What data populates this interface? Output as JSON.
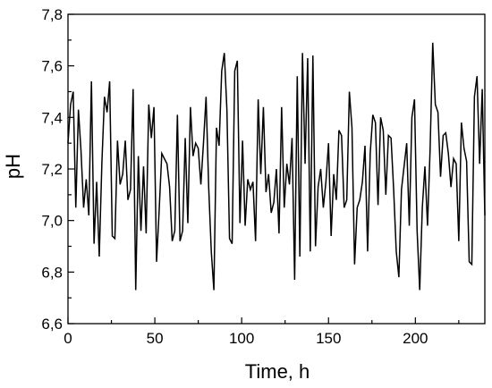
{
  "chart_data": {
    "type": "line",
    "title": "",
    "xlabel": "Time, h",
    "ylabel": "pH",
    "xlim": [
      0,
      240
    ],
    "ylim": [
      6.6,
      7.8
    ],
    "x_ticks": [
      0,
      50,
      100,
      150,
      200
    ],
    "x_tick_labels": [
      "0",
      "50",
      "100",
      "150",
      "200"
    ],
    "y_ticks": [
      6.6,
      6.8,
      7.0,
      7.2,
      7.4,
      7.6,
      7.8
    ],
    "y_tick_labels": [
      "6,6",
      "6,8",
      "7,0",
      "7,2",
      "7,4",
      "7,6",
      "7,8"
    ],
    "grid": false,
    "line_color": "#000000",
    "series": [
      {
        "x": [
          0,
          1.5,
          3,
          4.5,
          6,
          7.5,
          9,
          10.5,
          12,
          13.5,
          15,
          16.5,
          18,
          19.5,
          21,
          22.5,
          24,
          25.5,
          27,
          28.5,
          30,
          31.5,
          33,
          34.5,
          36,
          37.5,
          39,
          40.5,
          42,
          43.5,
          45,
          46.5,
          48,
          49.5,
          51,
          52.5,
          54,
          55.5,
          57,
          58.5,
          60,
          61.5,
          63,
          64.5,
          66,
          67.5,
          69,
          70.5,
          72,
          73.5,
          75,
          76.5,
          78,
          79.5,
          81,
          82.5,
          84,
          85.5,
          87,
          88.5,
          90,
          91.5,
          93,
          94.5,
          96,
          97.5,
          99,
          100.5,
          102,
          103.5,
          105,
          106.5,
          108,
          109.5,
          111,
          112.5,
          114,
          115.5,
          117,
          118.5,
          120,
          121.5,
          123,
          124.5,
          126,
          127.5,
          129,
          130.5,
          132,
          133.5,
          135,
          136.5,
          138,
          139.5,
          141,
          142.5,
          144,
          145.5,
          147,
          148.5,
          150,
          151.5,
          153,
          154.5,
          156,
          157.5,
          159,
          160.5,
          162,
          163.5,
          165,
          166.5,
          168,
          169.5,
          171,
          172.5,
          174,
          175.5,
          177,
          178.5,
          180,
          181.5,
          183,
          184.5,
          186,
          187.5,
          189,
          190.5,
          192,
          193.5,
          195,
          196.5,
          198,
          199.5,
          201,
          202.5,
          204,
          205.5,
          207,
          208.5,
          210,
          211.5,
          213,
          214.5,
          216,
          217.5,
          219,
          220.5,
          222,
          223.5,
          225,
          226.5,
          228,
          229.5,
          231,
          232.5,
          234,
          235.5,
          237,
          238.5,
          240
        ],
        "y": [
          7.3,
          7.45,
          7.5,
          7.05,
          7.43,
          7.27,
          7.05,
          7.16,
          7.02,
          7.54,
          6.91,
          7.15,
          6.86,
          7.22,
          7.48,
          7.42,
          7.54,
          6.94,
          6.93,
          7.31,
          7.14,
          7.18,
          7.31,
          7.08,
          7.12,
          7.51,
          6.73,
          7.25,
          6.96,
          7.21,
          6.95,
          7.45,
          7.32,
          7.44,
          6.84,
          7.04,
          7.26,
          7.24,
          7.22,
          7.13,
          6.92,
          6.96,
          7.41,
          6.92,
          6.96,
          7.32,
          6.99,
          7.44,
          7.25,
          7.3,
          7.28,
          7.14,
          7.3,
          7.48,
          7.13,
          6.88,
          6.73,
          7.36,
          7.29,
          7.58,
          7.65,
          7.43,
          6.93,
          6.91,
          7.58,
          7.62,
          6.99,
          7.31,
          6.98,
          7.16,
          7.12,
          7.15,
          6.92,
          7.47,
          7.18,
          7.44,
          7.11,
          7.18,
          7.03,
          7.07,
          7.2,
          6.95,
          7.44,
          7.05,
          7.22,
          7.14,
          7.32,
          6.77,
          7.56,
          6.86,
          7.65,
          7.22,
          7.63,
          6.88,
          7.64,
          6.9,
          7.13,
          7.2,
          7.05,
          7.15,
          7.3,
          6.94,
          7.18,
          7.08,
          7.35,
          7.33,
          7.05,
          7.08,
          7.5,
          7.36,
          6.83,
          7.05,
          7.08,
          7.15,
          7.29,
          6.88,
          7.26,
          7.41,
          7.38,
          7.06,
          7.4,
          7.35,
          7.1,
          7.33,
          7.32,
          7.12,
          6.88,
          6.78,
          7.12,
          7.21,
          7.3,
          6.98,
          7.4,
          7.47,
          6.96,
          6.73,
          7.05,
          7.21,
          6.98,
          7.28,
          7.69,
          7.45,
          7.42,
          7.17,
          7.33,
          7.34,
          7.26,
          7.13,
          7.24,
          7.22,
          6.92,
          7.38,
          7.28,
          7.23,
          6.84,
          6.83,
          7.48,
          7.56,
          7.22,
          7.51,
          7.02
        ]
      }
    ]
  }
}
